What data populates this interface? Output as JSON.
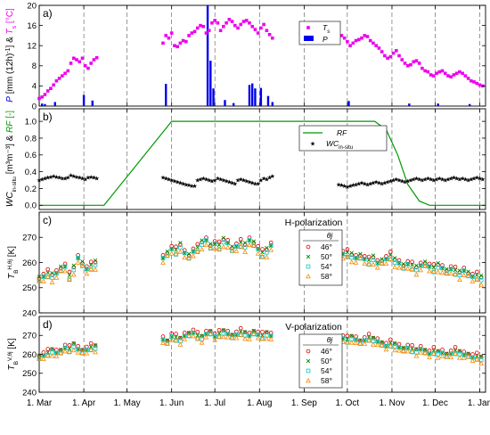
{
  "chart_data": [
    {
      "panel": "a)",
      "type": "scatter+bar",
      "ylabel": "P [mm (12h)⁻¹] & Tₛ [°C]",
      "ylim": [
        0,
        20
      ],
      "yticks": [
        0,
        4,
        8,
        12,
        16,
        20
      ],
      "legend": [
        "Tₛ",
        "P"
      ],
      "legend_position": "top-center",
      "series": [
        {
          "name": "Tₛ",
          "color": "#ee00ee",
          "marker": "square",
          "x": [
            "03-01",
            "03-03",
            "03-05",
            "03-07",
            "03-09",
            "03-11",
            "03-13",
            "03-15",
            "03-17",
            "03-19",
            "03-21",
            "03-23",
            "03-25",
            "03-27",
            "03-29",
            "03-31",
            "04-02",
            "04-04",
            "04-06",
            "04-08",
            "04-10",
            "05-26",
            "05-28",
            "05-30",
            "06-01",
            "06-03",
            "06-05",
            "06-07",
            "06-09",
            "06-11",
            "06-13",
            "06-15",
            "06-17",
            "06-19",
            "06-21",
            "06-23",
            "06-25",
            "06-27",
            "06-29",
            "07-01",
            "07-03",
            "07-05",
            "07-07",
            "07-09",
            "07-11",
            "07-13",
            "07-15",
            "07-17",
            "07-19",
            "07-21",
            "07-23",
            "07-25",
            "07-27",
            "07-29",
            "07-31",
            "08-02",
            "08-04",
            "08-06",
            "08-08",
            "08-10",
            "09-25",
            "09-27",
            "09-29",
            "10-01",
            "10-03",
            "10-05",
            "10-07",
            "10-09",
            "10-11",
            "10-13",
            "10-15",
            "10-17",
            "10-19",
            "10-21",
            "10-23",
            "10-25",
            "10-27",
            "10-29",
            "10-31",
            "11-02",
            "11-04",
            "11-06",
            "11-08",
            "11-10",
            "11-12",
            "11-14",
            "11-16",
            "11-18",
            "11-20",
            "11-22",
            "11-24",
            "11-26",
            "11-28",
            "11-30",
            "12-02",
            "12-04",
            "12-06",
            "12-08",
            "12-10",
            "12-12",
            "12-14",
            "12-16",
            "12-18",
            "12-20",
            "12-22",
            "12-24",
            "12-26",
            "12-28",
            "12-30",
            "01-01",
            "01-03"
          ],
          "y": [
            1.5,
            1.8,
            2.3,
            3,
            3.5,
            4.2,
            5,
            5.5,
            6,
            6.5,
            7,
            8.5,
            9.5,
            9.2,
            8.8,
            9.5,
            8,
            7.5,
            8.5,
            9.2,
            9.6,
            12.5,
            14,
            13.5,
            14.5,
            12,
            11.8,
            12.5,
            13,
            12.8,
            14,
            14.5,
            14.8,
            15.5,
            16,
            15.8,
            14.5,
            15,
            16.5,
            17,
            16.5,
            15,
            15.8,
            16.5,
            17.2,
            16.8,
            16,
            15.5,
            16.2,
            16.8,
            17,
            16.5,
            15.8,
            15.2,
            14.5,
            15.5,
            16.2,
            15,
            14.2,
            13.5,
            13.5,
            14,
            13.5,
            12.8,
            12,
            12.5,
            13,
            13.2,
            13.5,
            14,
            13.8,
            13,
            12.5,
            12,
            11.5,
            10.8,
            10,
            9.5,
            9.8,
            10.5,
            11,
            10,
            9.2,
            8.5,
            8,
            8.2,
            8.8,
            9,
            8.5,
            7.5,
            7,
            6.8,
            6.2,
            6,
            6.5,
            6.8,
            7,
            6.5,
            6,
            5.8,
            6.2,
            6.5,
            6.8,
            6.5,
            6,
            5.5,
            5,
            4.8,
            4.5,
            4.2,
            4
          ]
        },
        {
          "name": "P",
          "color": "#0000ee",
          "marker": "bar",
          "x": [
            "03-03",
            "03-05",
            "03-12",
            "04-01",
            "04-07",
            "05-28",
            "06-26",
            "06-28",
            "06-30",
            "07-08",
            "07-14",
            "07-25",
            "07-27",
            "07-29",
            "08-02",
            "08-07",
            "08-10",
            "10-02",
            "11-13",
            "12-03",
            "12-25"
          ],
          "y": [
            0.5,
            0.4,
            0.8,
            2.2,
            1.1,
            4.4,
            20,
            9,
            3.5,
            1.2,
            0.6,
            4.2,
            4.5,
            3.5,
            3.6,
            2,
            0.8,
            1,
            0.5,
            0.5,
            0.4
          ]
        }
      ]
    },
    {
      "panel": "b)",
      "type": "line+scatter",
      "ylabel": "WCᵢₙ₋ₛᵢₜᵤ [m³m⁻³] & RF [-]",
      "ylim": [
        -0.05,
        1.15
      ],
      "yticks": [
        0.0,
        0.2,
        0.4,
        0.6,
        0.8,
        1.0
      ],
      "legend": [
        "RF",
        "WCᵢₙ₋ₛᵢₜᵤ"
      ],
      "legend_position": "top-right",
      "series": [
        {
          "name": "RF",
          "color": "#009900",
          "line": true,
          "x": [
            "03-01",
            "04-15",
            "06-01",
            "10-20",
            "10-28",
            "11-05",
            "11-12",
            "11-20",
            "11-27",
            "01-05"
          ],
          "y": [
            0.0,
            0.0,
            1.0,
            1.0,
            0.9,
            0.6,
            0.25,
            0.05,
            0.0,
            0.0
          ]
        },
        {
          "name": "WCᵢₙ₋ₛᵢₜᵤ",
          "color": "#000000",
          "marker": "star",
          "x": [
            "03-01",
            "03-03",
            "03-05",
            "03-07",
            "03-09",
            "03-11",
            "03-13",
            "03-15",
            "03-17",
            "03-19",
            "03-21",
            "03-23",
            "03-25",
            "03-27",
            "03-29",
            "03-31",
            "04-02",
            "04-04",
            "04-06",
            "04-08",
            "04-10",
            "05-26",
            "05-28",
            "05-30",
            "06-01",
            "06-03",
            "06-05",
            "06-07",
            "06-09",
            "06-11",
            "06-13",
            "06-15",
            "06-17",
            "06-19",
            "06-21",
            "06-23",
            "06-25",
            "06-27",
            "06-29",
            "07-01",
            "07-03",
            "07-05",
            "07-07",
            "07-09",
            "07-11",
            "07-13",
            "07-15",
            "07-17",
            "07-19",
            "07-21",
            "07-23",
            "07-25",
            "07-27",
            "07-29",
            "07-31",
            "08-02",
            "08-04",
            "08-06",
            "08-08",
            "08-10",
            "09-25",
            "09-27",
            "09-29",
            "10-01",
            "10-03",
            "10-05",
            "10-07",
            "10-09",
            "10-11",
            "10-13",
            "10-15",
            "10-17",
            "10-19",
            "10-21",
            "10-23",
            "10-25",
            "10-27",
            "10-29",
            "10-31",
            "11-02",
            "11-04",
            "11-06",
            "11-08",
            "11-10",
            "11-12",
            "11-14",
            "11-16",
            "11-18",
            "11-20",
            "11-22",
            "11-24",
            "11-26",
            "11-28",
            "11-30",
            "12-02",
            "12-04",
            "12-06",
            "12-08",
            "12-10",
            "12-12",
            "12-14",
            "12-16",
            "12-18",
            "12-20",
            "12-22",
            "12-24",
            "12-26",
            "12-28",
            "12-30",
            "01-01",
            "01-03"
          ],
          "y": [
            0.3,
            0.31,
            0.32,
            0.33,
            0.34,
            0.35,
            0.34,
            0.33,
            0.32,
            0.32,
            0.33,
            0.36,
            0.35,
            0.34,
            0.33,
            0.32,
            0.31,
            0.33,
            0.34,
            0.33,
            0.32,
            0.33,
            0.32,
            0.31,
            0.3,
            0.29,
            0.28,
            0.27,
            0.26,
            0.25,
            0.24,
            0.23,
            0.23,
            0.3,
            0.31,
            0.32,
            0.31,
            0.3,
            0.29,
            0.3,
            0.32,
            0.31,
            0.3,
            0.29,
            0.28,
            0.27,
            0.26,
            0.3,
            0.31,
            0.3,
            0.29,
            0.28,
            0.27,
            0.26,
            0.26,
            0.3,
            0.32,
            0.31,
            0.33,
            0.35,
            0.25,
            0.24,
            0.23,
            0.22,
            0.23,
            0.24,
            0.25,
            0.26,
            0.27,
            0.26,
            0.25,
            0.26,
            0.27,
            0.28,
            0.27,
            0.26,
            0.27,
            0.28,
            0.29,
            0.3,
            0.31,
            0.3,
            0.29,
            0.28,
            0.29,
            0.3,
            0.31,
            0.32,
            0.31,
            0.3,
            0.31,
            0.32,
            0.31,
            0.3,
            0.31,
            0.32,
            0.31,
            0.3,
            0.31,
            0.32,
            0.33,
            0.32,
            0.31,
            0.32,
            0.31,
            0.3,
            0.31,
            0.32,
            0.33,
            0.32,
            0.31
          ]
        }
      ]
    },
    {
      "panel": "c)",
      "title": "H-polarization",
      "type": "scatter",
      "ylabel": "T_B^{H,θj} [K]",
      "ylim": [
        240,
        280
      ],
      "yticks": [
        240,
        250,
        260,
        270
      ],
      "legend_title": "θj",
      "legend_position": "right",
      "series": [
        {
          "name": "46°",
          "color": "#dd0000",
          "marker": "circle",
          "offset": 0.5
        },
        {
          "name": "50°",
          "color": "#008800",
          "marker": "x",
          "offset": 0
        },
        {
          "name": "54°",
          "color": "#00cccc",
          "marker": "square",
          "offset": -1
        },
        {
          "name": "58°",
          "color": "#ff8800",
          "marker": "triangle",
          "offset": -2
        }
      ],
      "x": [
        "03-01",
        "03-04",
        "03-07",
        "03-10",
        "03-13",
        "03-16",
        "03-19",
        "03-22",
        "03-25",
        "03-28",
        "03-31",
        "04-03",
        "04-06",
        "04-09",
        "05-26",
        "05-29",
        "06-01",
        "06-04",
        "06-07",
        "06-10",
        "06-13",
        "06-16",
        "06-19",
        "06-22",
        "06-25",
        "06-28",
        "07-01",
        "07-04",
        "07-07",
        "07-10",
        "07-13",
        "07-16",
        "07-19",
        "07-22",
        "07-25",
        "07-28",
        "07-31",
        "08-03",
        "08-06",
        "08-09",
        "09-25",
        "09-28",
        "10-01",
        "10-04",
        "10-07",
        "10-10",
        "10-13",
        "10-16",
        "10-19",
        "10-22",
        "10-25",
        "10-28",
        "10-31",
        "11-03",
        "11-06",
        "11-09",
        "11-12",
        "11-15",
        "11-18",
        "11-21",
        "11-24",
        "11-27",
        "11-30",
        "12-03",
        "12-06",
        "12-09",
        "12-12",
        "12-15",
        "12-18",
        "12-21",
        "12-24",
        "12-27",
        "12-30",
        "01-02"
      ],
      "base": [
        254,
        255,
        256,
        255,
        256,
        258,
        259,
        255,
        258,
        262,
        260,
        258,
        259,
        260,
        262,
        264,
        266,
        265,
        267,
        264,
        263,
        265,
        266,
        268,
        269,
        267,
        268,
        267,
        269,
        268,
        266,
        267,
        268,
        267,
        269,
        268,
        266,
        264,
        265,
        267,
        265,
        264,
        264,
        263,
        262,
        263,
        262,
        261,
        262,
        260,
        261,
        262,
        263,
        261,
        260,
        259,
        260,
        259,
        258,
        259,
        260,
        259,
        258,
        259,
        258,
        257,
        258,
        257,
        256,
        257,
        256,
        255,
        255,
        254
      ]
    },
    {
      "panel": "d)",
      "title": "V-polarization",
      "type": "scatter",
      "ylabel": "T_B^{V,θj} [K]",
      "ylim": [
        240,
        280
      ],
      "yticks": [
        240,
        250,
        260,
        270
      ],
      "legend_title": "θj",
      "legend_position": "right",
      "series": [
        {
          "name": "46°",
          "color": "#dd0000",
          "marker": "circle",
          "offset": 1
        },
        {
          "name": "50°",
          "color": "#008800",
          "marker": "x",
          "offset": 0
        },
        {
          "name": "54°",
          "color": "#00cccc",
          "marker": "square",
          "offset": -1
        },
        {
          "name": "58°",
          "color": "#ff8800",
          "marker": "triangle",
          "offset": -2
        }
      ],
      "x": [
        "03-01",
        "03-04",
        "03-07",
        "03-10",
        "03-13",
        "03-16",
        "03-19",
        "03-22",
        "03-25",
        "03-28",
        "03-31",
        "04-03",
        "04-06",
        "04-09",
        "05-26",
        "05-29",
        "06-01",
        "06-04",
        "06-07",
        "06-10",
        "06-13",
        "06-16",
        "06-19",
        "06-22",
        "06-25",
        "06-28",
        "07-01",
        "07-04",
        "07-07",
        "07-10",
        "07-13",
        "07-16",
        "07-19",
        "07-22",
        "07-25",
        "07-28",
        "07-31",
        "08-03",
        "08-06",
        "08-09",
        "09-25",
        "09-28",
        "10-01",
        "10-04",
        "10-07",
        "10-10",
        "10-13",
        "10-16",
        "10-19",
        "10-22",
        "10-25",
        "10-28",
        "10-31",
        "11-03",
        "11-06",
        "11-09",
        "11-12",
        "11-15",
        "11-18",
        "11-21",
        "11-24",
        "11-27",
        "11-30",
        "12-03",
        "12-06",
        "12-09",
        "12-12",
        "12-15",
        "12-18",
        "12-21",
        "12-24",
        "12-27",
        "12-30",
        "01-02"
      ],
      "base": [
        259,
        260,
        261,
        262,
        261,
        262,
        264,
        263,
        265,
        263,
        262,
        263,
        264,
        264,
        268,
        267,
        270,
        269,
        268,
        270,
        271,
        272,
        270,
        269,
        271,
        272,
        270,
        271,
        272,
        271,
        270,
        271,
        272,
        271,
        270,
        272,
        271,
        270,
        271,
        270,
        269,
        269,
        268,
        269,
        268,
        267,
        268,
        269,
        268,
        267,
        266,
        265,
        266,
        265,
        264,
        263,
        264,
        263,
        262,
        263,
        262,
        261,
        262,
        261,
        261,
        260,
        261,
        262,
        261,
        260,
        260,
        259,
        259,
        258
      ]
    }
  ],
  "x_axis": {
    "start": "03-01",
    "end": "01-05",
    "ticks": [
      {
        "date": "03-01",
        "label": "1. Mar"
      },
      {
        "date": "04-01",
        "label": "1. Apr"
      },
      {
        "date": "05-01",
        "label": "1. May"
      },
      {
        "date": "06-01",
        "label": "1. Jun"
      },
      {
        "date": "07-01",
        "label": "1. Jul"
      },
      {
        "date": "08-01",
        "label": "1. Aug"
      },
      {
        "date": "09-01",
        "label": "1. Sep"
      },
      {
        "date": "10-01",
        "label": "1. Oct"
      },
      {
        "date": "11-01",
        "label": "1. Nov"
      },
      {
        "date": "12-01",
        "label": "1. Dec"
      },
      {
        "date": "01-01",
        "label": "1. Jan"
      }
    ]
  }
}
